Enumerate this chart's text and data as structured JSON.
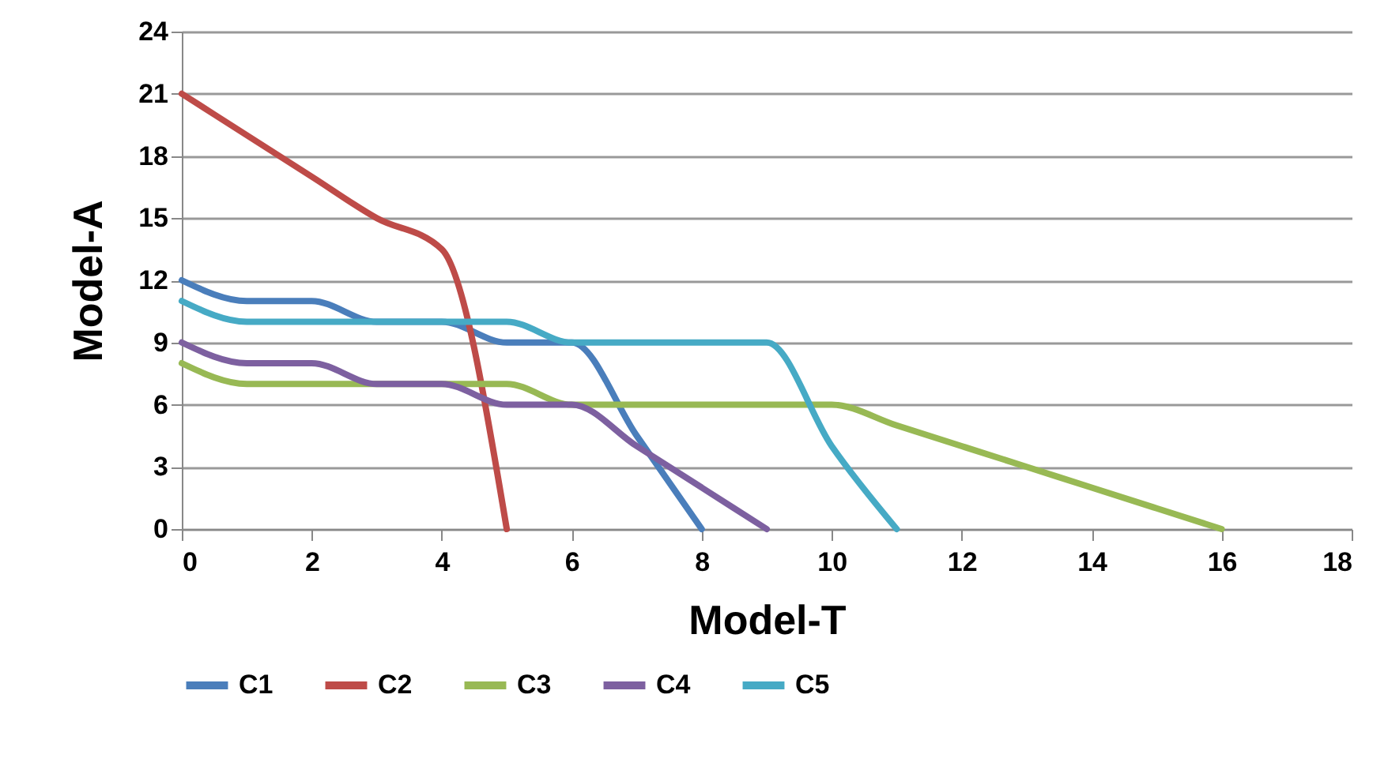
{
  "chart_data": {
    "type": "line",
    "xlabel": "Model-T",
    "ylabel": "Model-A",
    "xlim": [
      0,
      18
    ],
    "xticks": [
      0,
      2,
      4,
      6,
      8,
      10,
      12,
      14,
      16,
      18
    ],
    "ylim": [
      0,
      24
    ],
    "yticks": [
      0,
      3,
      6,
      9,
      12,
      15,
      18,
      21,
      24
    ],
    "grid": "y",
    "legend": "bottom",
    "series": [
      {
        "name": "C1",
        "color": "#4a7ebb",
        "x": [
          0,
          1,
          2,
          3,
          4,
          5,
          6,
          7,
          8
        ],
        "values": [
          12,
          11,
          11,
          10,
          10,
          9,
          9,
          4.5,
          0
        ]
      },
      {
        "name": "C2",
        "color": "#be4b48",
        "x": [
          0,
          1,
          2,
          3,
          4,
          5
        ],
        "values": [
          21,
          19,
          17,
          15,
          13.5,
          0
        ]
      },
      {
        "name": "C3",
        "color": "#98b954",
        "x": [
          0,
          1,
          2,
          3,
          4,
          5,
          6,
          7,
          8,
          9,
          10,
          11,
          12,
          13,
          14,
          15,
          16
        ],
        "values": [
          8,
          7,
          7,
          7,
          7,
          7,
          6,
          6,
          6,
          6,
          6,
          5,
          4,
          3,
          2,
          1,
          0
        ]
      },
      {
        "name": "C4",
        "color": "#7d60a0",
        "x": [
          0,
          1,
          2,
          3,
          4,
          5,
          6,
          7,
          8,
          9
        ],
        "values": [
          9,
          8,
          8,
          7,
          7,
          6,
          6,
          4,
          2,
          0
        ]
      },
      {
        "name": "C5",
        "color": "#46aac5",
        "x": [
          0,
          1,
          2,
          3,
          4,
          5,
          6,
          7,
          8,
          9,
          10,
          11
        ],
        "values": [
          11,
          10,
          10,
          10,
          10,
          10,
          9,
          9,
          9,
          9,
          4,
          0
        ]
      }
    ]
  }
}
